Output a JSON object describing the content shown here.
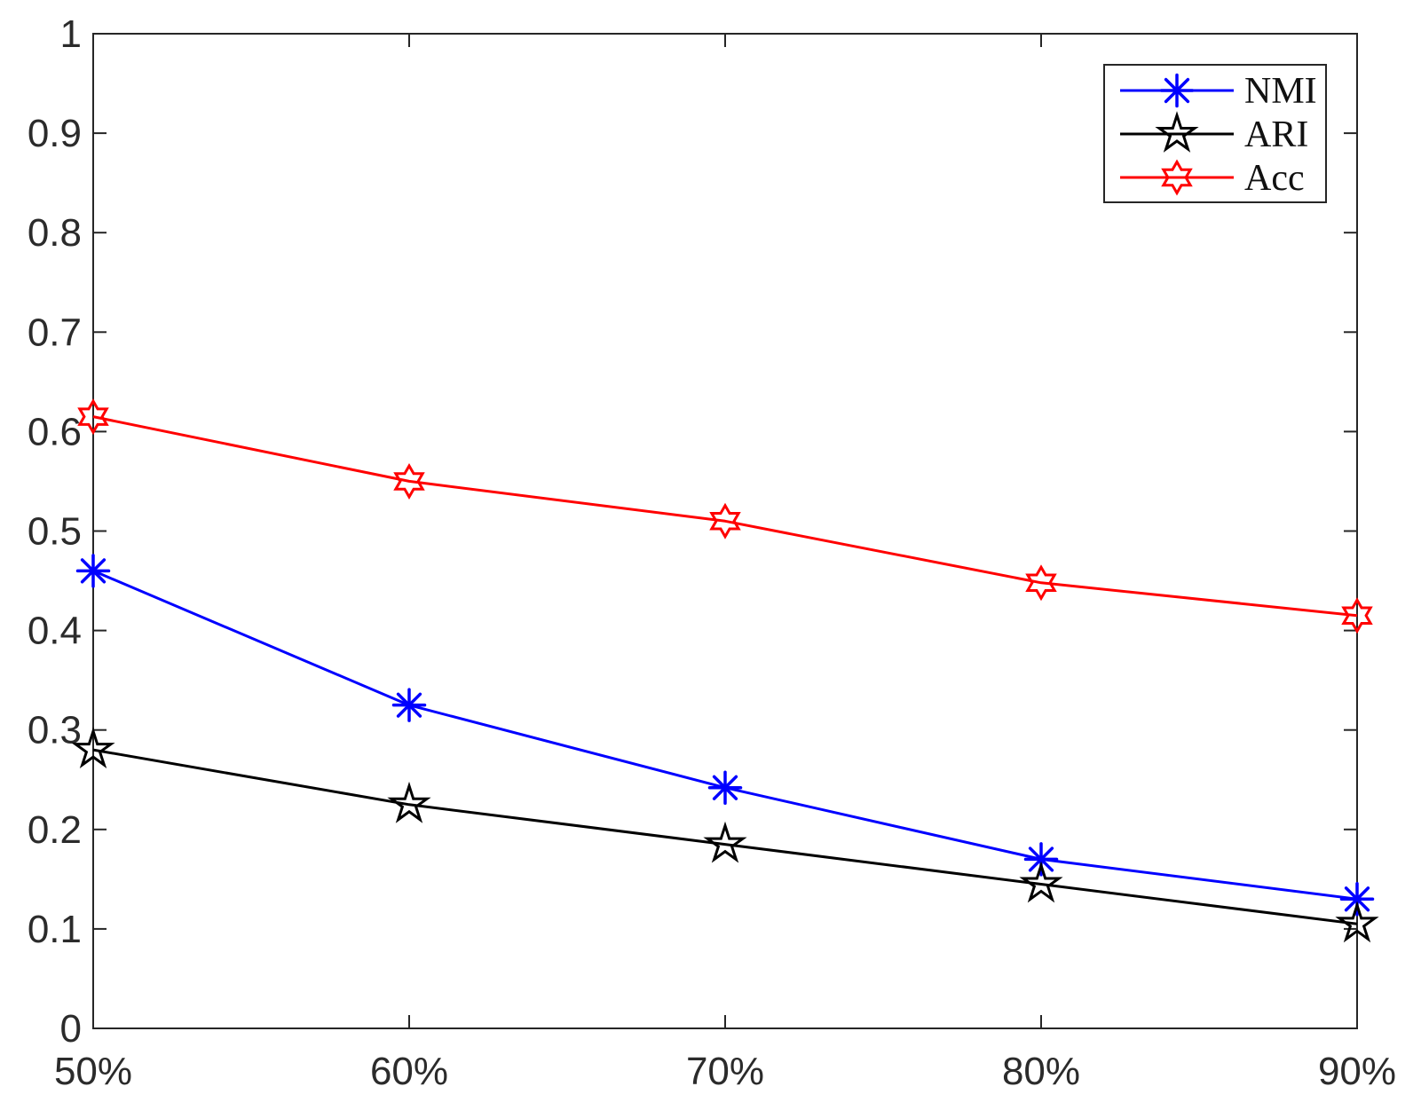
{
  "chart_data": {
    "type": "line",
    "categories": [
      "50%",
      "60%",
      "70%",
      "80%",
      "90%"
    ],
    "series": [
      {
        "name": "NMI",
        "color": "#0000ff",
        "marker": "asterisk",
        "values": [
          0.46,
          0.325,
          0.242,
          0.17,
          0.13
        ]
      },
      {
        "name": "ARI",
        "color": "#000000",
        "marker": "pentagram",
        "values": [
          0.28,
          0.225,
          0.185,
          0.145,
          0.105
        ]
      },
      {
        "name": "Acc",
        "color": "#ff0000",
        "marker": "hexagram",
        "values": [
          0.615,
          0.55,
          0.51,
          0.448,
          0.415
        ]
      }
    ],
    "title": "",
    "xlabel": "",
    "ylabel": "",
    "xtick_labels": [
      "50%",
      "60%",
      "70%",
      "80%",
      "90%"
    ],
    "yticks": [
      0,
      0.1,
      0.2,
      0.3,
      0.4,
      0.5,
      0.6,
      0.7,
      0.8,
      0.9,
      1
    ],
    "ytick_labels": [
      "0",
      "0.1",
      "0.2",
      "0.3",
      "0.4",
      "0.5",
      "0.6",
      "0.7",
      "0.8",
      "0.9",
      "1"
    ],
    "ylim": [
      0,
      1
    ],
    "grid": false,
    "legend_position": "top-right",
    "axis_color": "#262626",
    "background": "#ffffff"
  }
}
